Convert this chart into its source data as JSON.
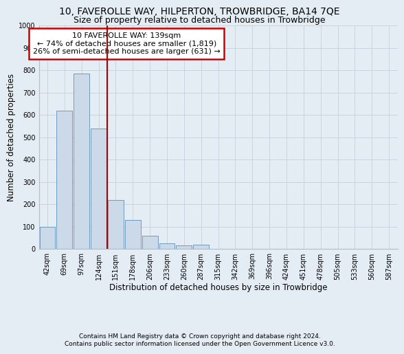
{
  "title": "10, FAVEROLLE WAY, HILPERTON, TROWBRIDGE, BA14 7QE",
  "subtitle": "Size of property relative to detached houses in Trowbridge",
  "xlabel": "Distribution of detached houses by size in Trowbridge",
  "ylabel": "Number of detached properties",
  "footer_line1": "Contains HM Land Registry data © Crown copyright and database right 2024.",
  "footer_line2": "Contains public sector information licensed under the Open Government Licence v3.0.",
  "annotation_line1": "10 FAVEROLLE WAY: 139sqm",
  "annotation_line2": "← 74% of detached houses are smaller (1,819)",
  "annotation_line3": "26% of semi-detached houses are larger (631) →",
  "bar_color": "#ccd9e8",
  "bar_edge_color": "#6090b8",
  "vline_color": "#aa0000",
  "grid_color": "#c8d4e0",
  "bg_color": "#e4ecf4",
  "annotation_box_color": "#ffffff",
  "annotation_box_edge_color": "#cc0000",
  "categories": [
    "42sqm",
    "69sqm",
    "97sqm",
    "124sqm",
    "151sqm",
    "178sqm",
    "206sqm",
    "233sqm",
    "260sqm",
    "287sqm",
    "315sqm",
    "342sqm",
    "369sqm",
    "396sqm",
    "424sqm",
    "451sqm",
    "478sqm",
    "505sqm",
    "533sqm",
    "560sqm",
    "587sqm"
  ],
  "values": [
    100,
    620,
    785,
    540,
    220,
    130,
    60,
    25,
    15,
    20,
    0,
    0,
    0,
    0,
    0,
    0,
    0,
    0,
    0,
    0,
    0
  ],
  "ylim": [
    0,
    1000
  ],
  "yticks": [
    0,
    100,
    200,
    300,
    400,
    500,
    600,
    700,
    800,
    900,
    1000
  ],
  "vline_x_index": 3.5,
  "title_fontsize": 10,
  "subtitle_fontsize": 9,
  "axis_label_fontsize": 8.5,
  "tick_fontsize": 7,
  "annotation_fontsize": 8,
  "footer_fontsize": 6.5
}
